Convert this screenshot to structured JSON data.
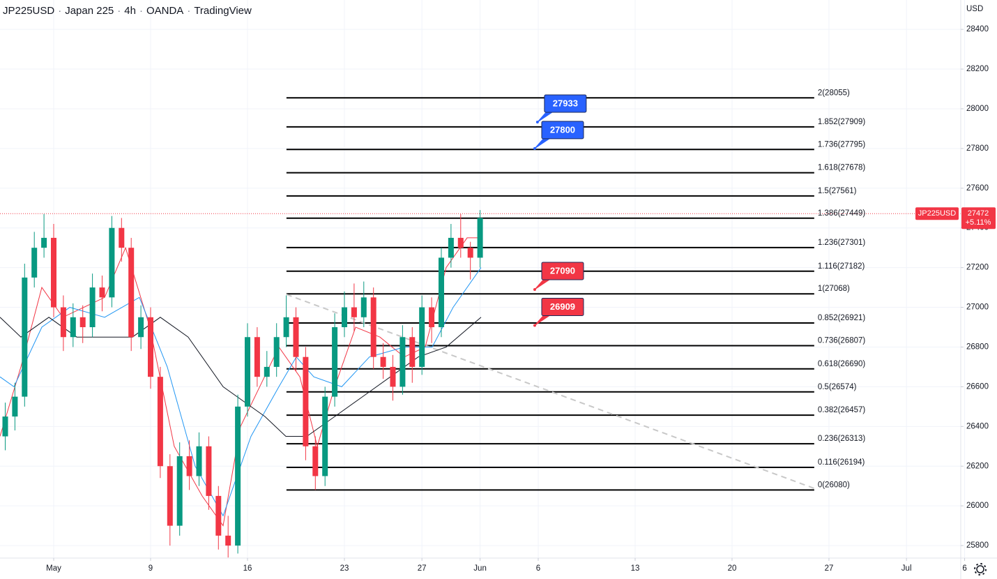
{
  "chart_data": {
    "type": "candlestick",
    "header": [
      "JP225USD",
      "Japan 225",
      "4h",
      "OANDA",
      "TradingView"
    ],
    "header_separator": "·",
    "currency": "USD",
    "xlim": [
      -2.77,
      46.8
    ],
    "xticks": [
      {
        "value": 0,
        "label": "May"
      },
      {
        "value": 5,
        "label": "9"
      },
      {
        "value": 10,
        "label": "16"
      },
      {
        "value": 15,
        "label": "23"
      },
      {
        "value": 19,
        "label": "27"
      },
      {
        "value": 22,
        "label": "Jun"
      },
      {
        "value": 25,
        "label": "6"
      },
      {
        "value": 30,
        "label": "13"
      },
      {
        "value": 35,
        "label": "20"
      },
      {
        "value": 40,
        "label": "27"
      },
      {
        "value": 44,
        "label": "Jul"
      },
      {
        "value": 47,
        "label": "6"
      }
    ],
    "ylim": [
      25737,
      28548
    ],
    "yticks": [
      25800,
      26000,
      26200,
      26400,
      26600,
      26800,
      27000,
      27200,
      27400,
      27600,
      27800,
      28000,
      28200,
      28400
    ],
    "grid": true,
    "up_color": "#089981",
    "down_color": "#f23645",
    "x": [
      -2.5,
      -2,
      -1.5,
      -1,
      -0.5,
      0,
      0.5,
      1,
      1.5,
      2,
      2.5,
      3,
      3.5,
      4,
      4.5,
      5,
      5.5,
      6,
      6.5,
      7,
      7.5,
      8,
      8.5,
      9,
      9.5,
      10,
      10.5,
      11,
      11.5,
      12,
      12.5,
      13,
      13.5,
      14,
      14.5,
      15,
      15.5,
      16,
      16.5,
      17,
      17.5,
      18,
      18.5,
      19,
      19.5,
      20,
      20.5,
      21,
      21.5,
      22
    ],
    "open": [
      26350,
      26450,
      26550,
      27150,
      27300,
      27350,
      27000,
      26850,
      26950,
      26900,
      27100,
      27050,
      27400,
      27300,
      26850,
      26950,
      26650,
      26200,
      25900,
      26250,
      26150,
      26300,
      26050,
      25850,
      25800,
      26500,
      26850,
      26650,
      26700,
      26850,
      26950,
      26750,
      26300,
      26150,
      26550,
      26900,
      27000,
      26950,
      27050,
      26750,
      26700,
      26600,
      26850,
      26700,
      27000,
      26900,
      27250,
      27350,
      27300,
      27250
    ],
    "high": [
      26520,
      26620,
      27220,
      27380,
      27470,
      27420,
      27060,
      27020,
      27010,
      27170,
      27160,
      27460,
      27450,
      27350,
      27010,
      27000,
      26700,
      26260,
      26320,
      26330,
      26370,
      26350,
      26100,
      25950,
      26560,
      26920,
      26900,
      26780,
      26920,
      27060,
      27000,
      26800,
      26350,
      26600,
      26970,
      27080,
      27120,
      27130,
      27100,
      26820,
      26760,
      26910,
      26900,
      27060,
      27050,
      27300,
      27420,
      27470,
      27330,
      27490
    ],
    "low": [
      26280,
      26380,
      26500,
      27100,
      27250,
      26950,
      26780,
      26800,
      26820,
      26850,
      26980,
      27000,
      27230,
      26780,
      26790,
      26590,
      26140,
      25800,
      25850,
      26080,
      26100,
      25980,
      25780,
      25740,
      25760,
      26450,
      26600,
      26600,
      26650,
      26800,
      26680,
      26230,
      26080,
      26100,
      26500,
      26850,
      26880,
      26900,
      26690,
      26640,
      26530,
      26560,
      26620,
      26660,
      26820,
      26850,
      27200,
      27250,
      27140,
      27200
    ],
    "close": [
      26450,
      26550,
      27150,
      27300,
      27350,
      27000,
      26850,
      26950,
      26900,
      27100,
      27050,
      27400,
      27300,
      26850,
      26950,
      26650,
      26200,
      25900,
      26250,
      26150,
      26300,
      26050,
      25850,
      25800,
      26500,
      26850,
      26650,
      26700,
      26850,
      26950,
      26750,
      26300,
      26150,
      26550,
      26900,
      27000,
      26950,
      27050,
      26750,
      26700,
      26600,
      26850,
      26700,
      27000,
      26900,
      27250,
      27350,
      27300,
      27250,
      27450
    ],
    "moving_averages": [
      {
        "color": "#f23645",
        "x": [
          -2.77,
          -1.69,
          -0.61,
          0.47,
          2.63,
          3.71,
          4.96,
          6.22,
          7.66,
          8.74,
          9.64,
          11.62,
          12.7,
          13.6,
          14.5,
          15.58,
          16.83,
          18.09,
          19.17,
          20.25,
          21.33,
          22.05
        ],
        "values": [
          26350,
          26700,
          27100,
          26950,
          27050,
          27300,
          26900,
          26300,
          26050,
          25900,
          26400,
          26800,
          26650,
          26300,
          26600,
          26900,
          26850,
          26750,
          26800,
          27200,
          27350,
          27350
        ]
      },
      {
        "color": "#2196f3",
        "x": [
          -2.77,
          -2.05,
          -0.61,
          0.83,
          2.63,
          4.42,
          5.86,
          7.3,
          8.74,
          10.18,
          11.62,
          12.52,
          13.42,
          14.86,
          16.29,
          18.09,
          19.53,
          20.61,
          22.05
        ],
        "values": [
          26650,
          26600,
          26900,
          27000,
          26950,
          27050,
          26700,
          26200,
          25950,
          26350,
          26600,
          26750,
          26650,
          26600,
          26750,
          26800,
          26800,
          27000,
          27200
        ]
      },
      {
        "color": "#131722",
        "x": [
          -2.77,
          -1.69,
          -0.25,
          1.19,
          2.63,
          4.06,
          5.5,
          6.94,
          8.74,
          10.9,
          11.98,
          13.06,
          14.5,
          15.94,
          17.37,
          18.81,
          20.25,
          22.05
        ],
        "values": [
          26950,
          26850,
          26950,
          26850,
          26850,
          26850,
          26950,
          26850,
          26600,
          26450,
          26350,
          26350,
          26450,
          26550,
          26650,
          26750,
          26800,
          26950
        ]
      }
    ],
    "trendline": {
      "x": [
        12.01,
        39.24
      ],
      "values": [
        27065,
        26088
      ]
    },
    "fibonacci": {
      "x": [
        12.01,
        39.24
      ],
      "levels": [
        {
          "value": 28055,
          "label": "2(28055)"
        },
        {
          "value": 27909,
          "label": "1.852(27909)"
        },
        {
          "value": 27795,
          "label": "1.736(27795)"
        },
        {
          "value": 27678,
          "label": "1.618(27678)"
        },
        {
          "value": 27561,
          "label": "1.5(27561)"
        },
        {
          "value": 27449,
          "label": "1.386(27449)"
        },
        {
          "value": 27301,
          "label": "1.236(27301)"
        },
        {
          "value": 27182,
          "label": "1.116(27182)"
        },
        {
          "value": 27068,
          "label": "1(27068)"
        },
        {
          "value": 26921,
          "label": "0.852(26921)"
        },
        {
          "value": 26807,
          "label": "0.736(26807)"
        },
        {
          "value": 26690,
          "label": "0.618(26690)"
        },
        {
          "value": 26574,
          "label": "0.5(26574)"
        },
        {
          "value": 26457,
          "label": "0.382(26457)"
        },
        {
          "value": 26313,
          "label": "0.236(26313)"
        },
        {
          "value": 26194,
          "label": "0.116(26194)"
        },
        {
          "value": 26080,
          "label": "0(26080)"
        }
      ]
    },
    "callouts": [
      {
        "value": 27933,
        "x": 24.96,
        "color": "#2962ff"
      },
      {
        "value": 27800,
        "x": 24.82,
        "color": "#2962ff"
      },
      {
        "value": 27090,
        "x": 24.82,
        "color": "#f23645"
      },
      {
        "value": 26909,
        "x": 24.82,
        "color": "#f23645"
      }
    ],
    "last_price": {
      "symbol": "JP225USD",
      "value": 27472,
      "change_label": "+5.11%",
      "color": "#f23645"
    }
  }
}
